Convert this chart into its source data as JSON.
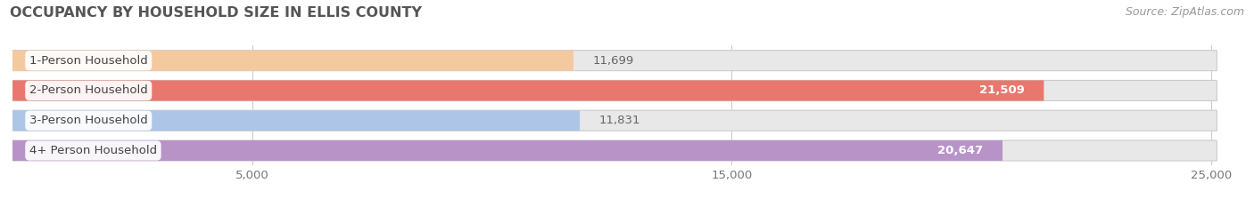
{
  "title": "OCCUPANCY BY HOUSEHOLD SIZE IN ELLIS COUNTY",
  "source": "Source: ZipAtlas.com",
  "categories": [
    "1-Person Household",
    "2-Person Household",
    "3-Person Household",
    "4+ Person Household"
  ],
  "values": [
    11699,
    21509,
    11831,
    20647
  ],
  "bar_colors": [
    "#f5c9a0",
    "#e8786e",
    "#adc6e8",
    "#b893c8"
  ],
  "bar_bg_color": "#e8e8e8",
  "value_labels": [
    "11,699",
    "21,509",
    "11,831",
    "20,647"
  ],
  "value_label_colors": [
    "#888888",
    "#ffffff",
    "#888888",
    "#ffffff"
  ],
  "xlim_max": 25500,
  "xticks": [
    5000,
    15000,
    25000
  ],
  "xtick_labels": [
    "5,000",
    "15,000",
    "25,000"
  ],
  "bg_color": "#ffffff",
  "title_fontsize": 11.5,
  "label_fontsize": 9.5,
  "value_fontsize": 9.5,
  "source_fontsize": 9,
  "bar_height": 0.68,
  "bar_rounding": 0.34
}
